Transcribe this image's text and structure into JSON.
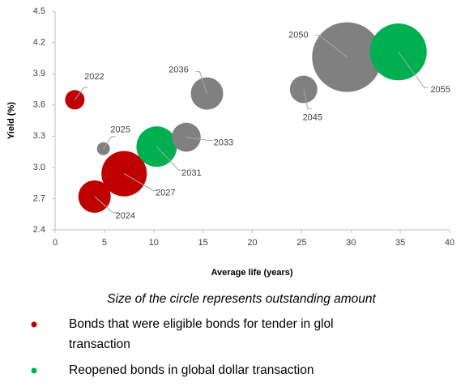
{
  "chart_data": {
    "type": "scatter",
    "x_label": "Average life (years)",
    "y_label": "Yield (%)",
    "labels": [
      "2022",
      "2024",
      "2025",
      "2027",
      "2031",
      "2033",
      "2036",
      "2045",
      "2050",
      "2055"
    ],
    "x": [
      2,
      4,
      4.9,
      7,
      10.3,
      13.3,
      15.4,
      25.2,
      29.6,
      34.8
    ],
    "values": [
      3.65,
      2.72,
      3.18,
      2.94,
      3.2,
      3.29,
      3.71,
      3.75,
      4.06,
      4.11
    ],
    "sizes": [
      9,
      25,
      4,
      49,
      39,
      20,
      25,
      18,
      116,
      77
    ],
    "colors": [
      "#c00000",
      "#c00000",
      "#808080",
      "#c00000",
      "#00b050",
      "#808080",
      "#808080",
      "#808080",
      "#808080",
      "#00b050"
    ],
    "xlim": [
      0,
      40
    ],
    "xticks": [
      0,
      5,
      10,
      15,
      20,
      25,
      30,
      35,
      40
    ],
    "ylim": [
      2.4,
      4.5
    ],
    "yticks": [
      2.4,
      2.7,
      {
        "value": 3,
        "label": "3.0"
      },
      3.3,
      3.6,
      3.9,
      4.2,
      4.5
    ],
    "note": "Size of the circle represents outstanding amount",
    "legend": [
      {
        "color": "#c00000",
        "lines": [
          "Bonds that were eligible bonds for tender in glol",
          "transaction"
        ]
      },
      {
        "color": "#00b050",
        "lines": [
          "Reopened bonds in global dollar transaction"
        ]
      }
    ]
  }
}
